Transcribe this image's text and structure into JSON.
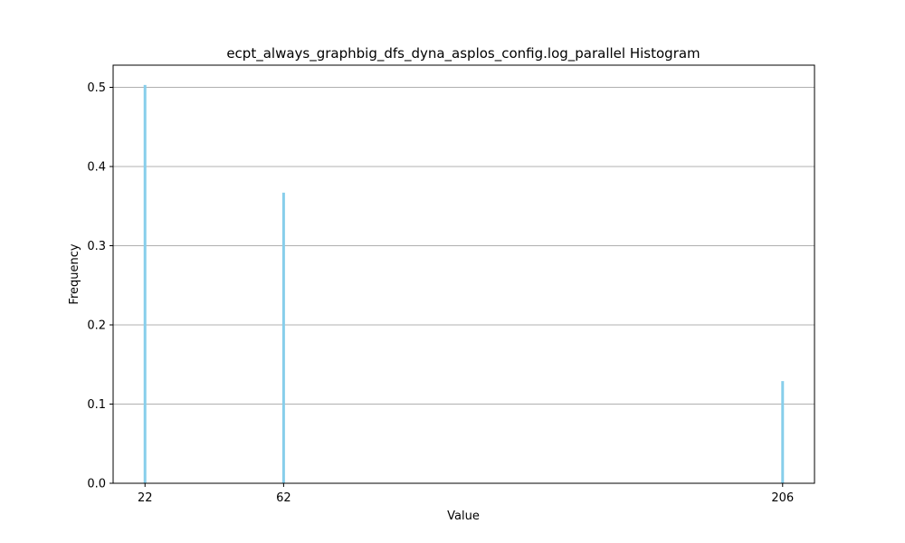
{
  "chart_data": {
    "type": "bar",
    "title": "ecpt_always_graphbig_dfs_dyna_asplos_config.log_parallel Histogram",
    "xlabel": "Value",
    "ylabel": "Frequency",
    "x": [
      22,
      62,
      206
    ],
    "values": [
      0.503,
      0.367,
      0.129
    ],
    "xticks": [
      22,
      62,
      206
    ],
    "yticks": [
      "0.0",
      "0.1",
      "0.2",
      "0.3",
      "0.4",
      "0.5"
    ],
    "xlim": [
      12.8,
      215.2
    ],
    "ylim": [
      0,
      0.528
    ],
    "grid": "horizontal",
    "bar_color": "#87ceeb"
  }
}
